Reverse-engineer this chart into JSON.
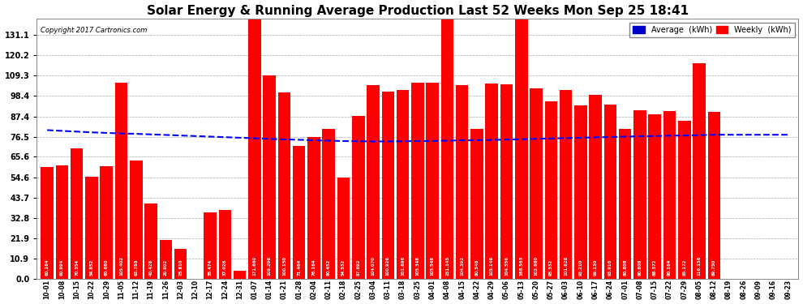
{
  "title": "Solar Energy & Running Average Production Last 52 Weeks Mon Sep 25 18:41",
  "copyright": "Copyright 2017 Cartronics.com",
  "ylabel_right_ticks": [
    0.0,
    10.9,
    21.9,
    32.8,
    43.7,
    54.6,
    65.6,
    76.5,
    87.4,
    98.4,
    109.3,
    120.2,
    131.1
  ],
  "bar_color": "#ff0000",
  "line_color": "#0000ff",
  "bg_color": "#ffffff",
  "grid_color": "#aaaaaa",
  "legend_avg_color": "#0000cd",
  "legend_weekly_color": "#ff0000",
  "categories": [
    "10-01",
    "10-08",
    "10-15",
    "10-22",
    "10-29",
    "11-05",
    "11-12",
    "11-19",
    "11-26",
    "12-03",
    "12-10",
    "12-17",
    "12-24",
    "12-31",
    "01-07",
    "01-14",
    "01-21",
    "01-28",
    "02-04",
    "02-11",
    "02-18",
    "02-25",
    "03-04",
    "03-11",
    "03-18",
    "03-25",
    "04-01",
    "04-08",
    "04-15",
    "04-22",
    "04-29",
    "05-06",
    "05-13",
    "05-20",
    "05-27",
    "06-03",
    "06-10",
    "06-17",
    "06-24",
    "07-01",
    "07-08",
    "07-15",
    "07-22",
    "07-29",
    "08-05",
    "08-12",
    "08-19",
    "08-26",
    "09-09",
    "09-16",
    "09-23"
  ],
  "weekly_values": [
    60.164,
    60.994,
    70.354,
    54.852,
    60.68,
    105.402,
    63.788,
    40.428,
    20.902,
    15.81,
    0.0,
    35.474,
    37.026,
    4.312,
    171.66,
    109.296,
    100.15,
    71.464,
    76.164,
    80.452,
    54.532,
    87.692,
    104.07,
    100.926,
    101.696,
    105.348,
    105.548,
    151.145,
    104.392,
    80.548,
    105.148,
    104.556,
    188.563,
    102.68,
    95.332,
    101.628,
    93.21,
    99.13,
    93.916,
    80.808,
    90.808,
    88.372,
    90.164,
    85.172,
    116.156,
    89.75,
    0.0,
    0.0,
    0.0,
    0.0,
    0.0
  ],
  "avg_values": [
    80.0,
    79.6,
    79.2,
    78.8,
    78.5,
    78.2,
    78.0,
    77.7,
    77.4,
    77.1,
    76.8,
    76.5,
    76.2,
    75.9,
    75.6,
    75.3,
    75.0,
    74.8,
    74.5,
    74.3,
    74.1,
    74.0,
    73.9,
    73.9,
    74.0,
    74.1,
    74.2,
    74.3,
    74.5,
    74.6,
    74.7,
    74.9,
    75.1,
    75.3,
    75.5,
    75.7,
    75.9,
    76.1,
    76.3,
    76.5,
    76.7,
    76.8,
    77.0,
    77.1,
    77.3,
    77.5,
    77.5,
    77.5,
    77.5,
    77.5,
    77.5
  ],
  "ylim_max": 140.0,
  "title_fontsize": 11,
  "tick_fontsize": 7,
  "xtick_fontsize": 5.5
}
